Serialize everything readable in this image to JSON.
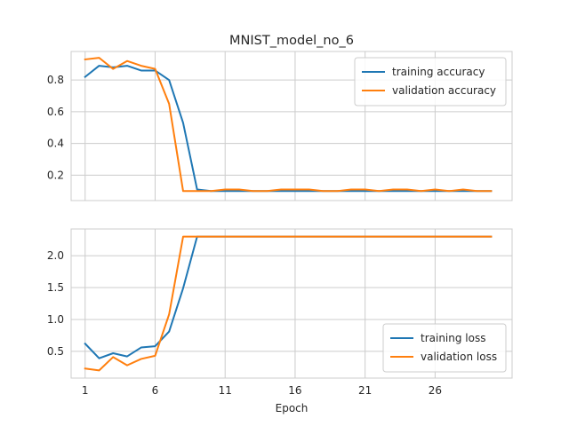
{
  "chart_data": [
    {
      "type": "line",
      "title": "MNIST_model_no_6",
      "xlabel": "",
      "ylabel": "",
      "x": [
        1,
        2,
        3,
        4,
        5,
        6,
        7,
        8,
        9,
        10,
        11,
        12,
        13,
        14,
        15,
        16,
        17,
        18,
        19,
        20,
        21,
        22,
        23,
        24,
        25,
        26,
        27,
        28,
        29,
        30
      ],
      "xlim": [
        0.0,
        31.5
      ],
      "ylim": [
        0.04,
        0.98
      ],
      "yticks": [
        0.2,
        0.4,
        0.6,
        0.8
      ],
      "ytick_labels": [
        "0.2",
        "0.4",
        "0.6",
        "0.8"
      ],
      "grid": true,
      "legend_position": "top-right",
      "series": [
        {
          "name": "training accuracy",
          "color": "#1f77b4",
          "values": [
            0.82,
            0.89,
            0.88,
            0.89,
            0.86,
            0.86,
            0.8,
            0.53,
            0.11,
            0.1,
            0.1,
            0.1,
            0.1,
            0.1,
            0.1,
            0.1,
            0.1,
            0.1,
            0.1,
            0.1,
            0.1,
            0.1,
            0.1,
            0.1,
            0.1,
            0.1,
            0.1,
            0.1,
            0.1,
            0.1
          ]
        },
        {
          "name": "validation accuracy",
          "color": "#ff7f0e",
          "values": [
            0.93,
            0.94,
            0.87,
            0.92,
            0.89,
            0.87,
            0.65,
            0.1,
            0.1,
            0.1,
            0.11,
            0.11,
            0.1,
            0.1,
            0.11,
            0.11,
            0.11,
            0.1,
            0.1,
            0.11,
            0.11,
            0.1,
            0.11,
            0.11,
            0.1,
            0.11,
            0.1,
            0.11,
            0.1,
            0.1
          ]
        }
      ]
    },
    {
      "type": "line",
      "title": "",
      "xlabel": "Epoch",
      "ylabel": "",
      "x": [
        1,
        2,
        3,
        4,
        5,
        6,
        7,
        8,
        9,
        10,
        11,
        12,
        13,
        14,
        15,
        16,
        17,
        18,
        19,
        20,
        21,
        22,
        23,
        24,
        25,
        26,
        27,
        28,
        29,
        30
      ],
      "xlim": [
        0.0,
        31.5
      ],
      "ylim": [
        0.08,
        2.42
      ],
      "yticks": [
        0.5,
        1.0,
        1.5,
        2.0
      ],
      "ytick_labels": [
        "0.5",
        "1.0",
        "1.5",
        "2.0"
      ],
      "xticks": [
        1,
        6,
        11,
        16,
        21,
        26
      ],
      "xtick_labels": [
        "1",
        "6",
        "11",
        "16",
        "21",
        "26"
      ],
      "grid": true,
      "legend_position": "bottom-right",
      "series": [
        {
          "name": "training loss",
          "color": "#1f77b4",
          "values": [
            0.62,
            0.39,
            0.47,
            0.42,
            0.56,
            0.58,
            0.81,
            1.49,
            2.3,
            2.3,
            2.3,
            2.3,
            2.3,
            2.3,
            2.3,
            2.3,
            2.3,
            2.3,
            2.3,
            2.3,
            2.3,
            2.3,
            2.3,
            2.3,
            2.3,
            2.3,
            2.3,
            2.3,
            2.3,
            2.3
          ]
        },
        {
          "name": "validation loss",
          "color": "#ff7f0e",
          "values": [
            0.23,
            0.2,
            0.41,
            0.28,
            0.38,
            0.43,
            1.08,
            2.3,
            2.3,
            2.3,
            2.3,
            2.3,
            2.3,
            2.3,
            2.3,
            2.3,
            2.3,
            2.3,
            2.3,
            2.3,
            2.3,
            2.3,
            2.3,
            2.3,
            2.3,
            2.3,
            2.3,
            2.3,
            2.3,
            2.3
          ]
        }
      ]
    }
  ]
}
